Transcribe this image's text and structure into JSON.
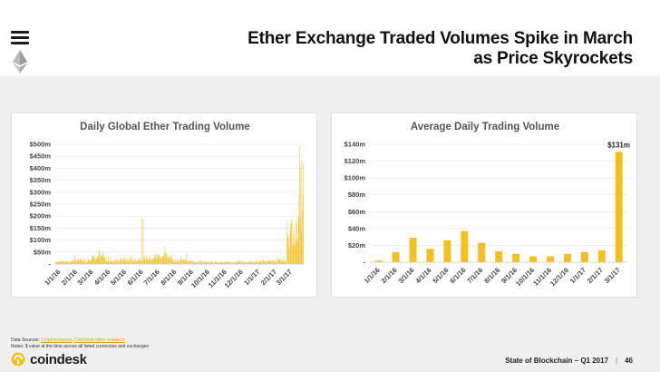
{
  "header": {
    "title_line1": "Ether Exchange Traded Volumes Spike in March",
    "title_line2": "as Price Skyrockets"
  },
  "notes": {
    "sources_label": "Data Sources:",
    "source1": "Cryptocompare",
    "source_sep": ", ",
    "source2": "CoinDesk ether research",
    "notes_text": "Notes: $ value at the time across all listed currencies and exchanges"
  },
  "footer": {
    "brand": "coindesk",
    "report": "State of Blockchain – Q1 2017",
    "separator": "|",
    "page": "46"
  },
  "colors": {
    "bar": "#f5bf1f",
    "panel_bg": "#efefef",
    "accent": "#e5a200"
  },
  "chart_data": [
    {
      "type": "bar",
      "title": "Daily Global Ether Trading Volume",
      "unit": "$m",
      "ylim": [
        0,
        500
      ],
      "yticks": [
        "-",
        "$50m",
        "$100m",
        "$150m",
        "$200m",
        "$250m",
        "$300m",
        "$350m",
        "$400m",
        "$450m",
        "$500m"
      ],
      "xticks": [
        "1/1/16",
        "2/1/16",
        "3/1/16",
        "4/1/16",
        "5/1/16",
        "6/1/16",
        "7/1/16",
        "8/1/16",
        "9/1/16",
        "10/1/16",
        "11/1/16",
        "12/1/16",
        "1/1/17",
        "2/1/17",
        "3/1/17"
      ],
      "grid": true,
      "segments": [
        {
          "month": "1/1/16",
          "days": 31,
          "base": 12,
          "peak": 22
        },
        {
          "month": "2/1/16",
          "days": 29,
          "base": 18,
          "peak": 38
        },
        {
          "month": "3/1/16",
          "days": 31,
          "base": 30,
          "peak": 60
        },
        {
          "month": "4/1/16",
          "days": 30,
          "base": 18,
          "peak": 40
        },
        {
          "month": "5/1/16",
          "days": 31,
          "base": 20,
          "peak": 42
        },
        {
          "month": "6/1/16",
          "days": 30,
          "base": 28,
          "peak": 200
        },
        {
          "month": "7/1/16",
          "days": 31,
          "base": 38,
          "peak": 82
        },
        {
          "month": "8/1/16",
          "days": 31,
          "base": 18,
          "peak": 45
        },
        {
          "month": "9/1/16",
          "days": 30,
          "base": 12,
          "peak": 22
        },
        {
          "month": "10/1/16",
          "days": 31,
          "base": 10,
          "peak": 18
        },
        {
          "month": "11/1/16",
          "days": 30,
          "base": 8,
          "peak": 14
        },
        {
          "month": "12/1/16",
          "days": 31,
          "base": 10,
          "peak": 18
        },
        {
          "month": "1/1/17",
          "days": 31,
          "base": 12,
          "peak": 20
        },
        {
          "month": "2/1/17",
          "days": 28,
          "base": 14,
          "peak": 30
        },
        {
          "month": "3/1/17",
          "days": 31,
          "base": 130,
          "peak": 490
        }
      ]
    },
    {
      "type": "bar",
      "title": "Average Daily Trading Volume",
      "unit": "$m",
      "ylim": [
        0,
        140
      ],
      "yticks": [
        "-",
        "$20m",
        "$40m",
        "$60m",
        "$80m",
        "$100m",
        "$120m",
        "$140m"
      ],
      "categories": [
        "1/1/16",
        "2/1/16",
        "3/1/16",
        "4/1/16",
        "5/1/16",
        "6/1/16",
        "7/1/16",
        "8/1/16",
        "9/1/16",
        "10/1/16",
        "11/1/16",
        "12/1/16",
        "1/1/17",
        "2/1/17",
        "3/1/17"
      ],
      "values": [
        2,
        12,
        29,
        16,
        26,
        37,
        23,
        13,
        10,
        7,
        7,
        10,
        12,
        14,
        131
      ],
      "annotation": "$131m",
      "grid": true
    }
  ]
}
